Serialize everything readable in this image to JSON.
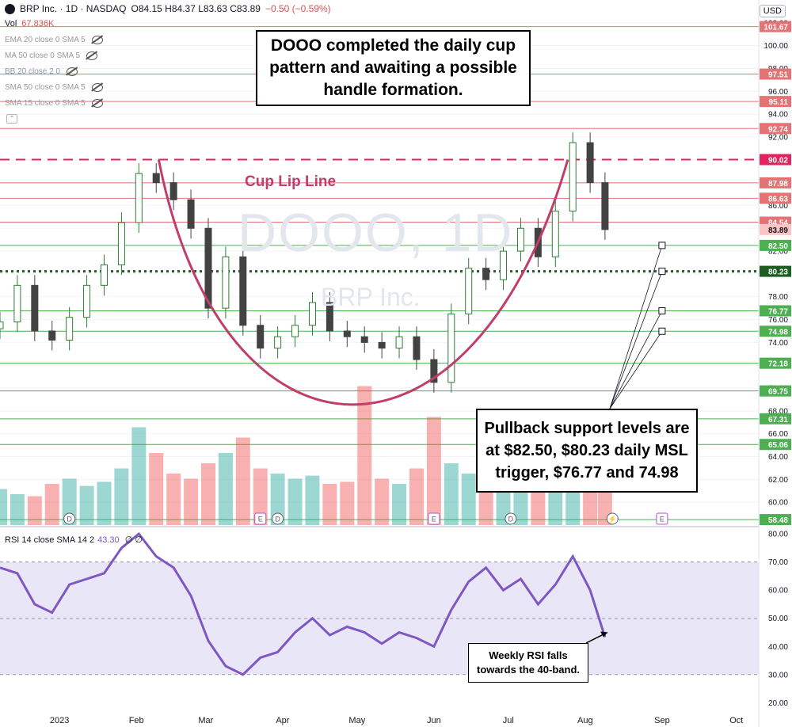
{
  "header": {
    "symbol": "BRP Inc. · 1D · NASDAQ",
    "ohlc": "O84.15 H84.37 L83.63 C83.89",
    "change": "−0.50 (−0.59%)",
    "volume_label": "Vol",
    "volume_value": "67.836K",
    "currency": "USD"
  },
  "indicators": [
    "EMA 20 close 0 SMA 5",
    "MA 50 close 0 SMA 5",
    "BB 20 close 2 0",
    "SMA 50 close 0 SMA 5",
    "SMA 15 close 0 SMA 5"
  ],
  "rsi_header": {
    "label": "RSI 14 close SMA 14 2",
    "value": "43.30",
    "extra": "∅ ∅"
  },
  "watermark": {
    "ticker": "DOOO, 1D",
    "name": "BRP Inc."
  },
  "annotations": {
    "top": [
      "DOOO completed the daily cup",
      "pattern and awaiting a possible",
      "handle formation."
    ],
    "cup_lip": "Cup Lip Line",
    "support": [
      "Pullback support levels are",
      "at $82.50, $80.23 daily MSL",
      "trigger, $76.77 and 74.98"
    ],
    "rsi": [
      "Weekly RSI falls",
      "towards the 40-band."
    ]
  },
  "colors": {
    "up": "#26a69a",
    "down": "#ef5350",
    "cup": "#c13d6b",
    "resistance": "#e57373",
    "support": "#4caf50",
    "msl": "#1b5e20",
    "lip": "#e0245e",
    "rsi": "#7e57c2",
    "rsi_band": "#e9e6f7"
  },
  "chart_data": [
    {
      "type": "line",
      "title": "",
      "price_axis": {
        "ticks": [
          "102.00",
          "100.00",
          "98.00",
          "96.00",
          "94.00",
          "92.00",
          "90.00",
          "88.00",
          "86.00",
          "84.00",
          "82.00",
          "80.00",
          "78.00",
          "76.00",
          "74.00",
          "72.00",
          "70.00",
          "68.00",
          "66.00",
          "64.00",
          "62.00",
          "60.00"
        ],
        "range": [
          58.0,
          104.0
        ]
      },
      "x_axis": {
        "labels": [
          "2023",
          "Feb",
          "Mar",
          "Apr",
          "May",
          "Jun",
          "Jul",
          "Aug",
          "Sep",
          "Oct"
        ],
        "range": [
          "2022-12-08",
          "2023-10-10"
        ]
      },
      "resistance_levels": [
        101.67,
        97.51,
        95.11,
        92.74,
        87.98,
        86.63,
        84.54
      ],
      "support_levels": [
        82.5,
        76.77,
        74.98,
        72.18,
        69.75,
        67.31,
        65.06,
        58.48
      ],
      "msl_level": 80.23,
      "cup_lip_level": 90.02,
      "current_price": 83.89,
      "price_labels": [
        "101.67",
        "97.51",
        "95.11",
        "92.74",
        "90.02",
        "87.98",
        "86.63",
        "84.54",
        "83.89",
        "82.50",
        "80.23",
        "76.77",
        "74.98",
        "72.18",
        "69.75",
        "67.31",
        "65.06",
        "58.48"
      ],
      "close_series": {
        "x": [
          "2022-12-08",
          "2022-12-15",
          "2022-12-22",
          "2022-12-29",
          "2023-01-05",
          "2023-01-12",
          "2023-01-19",
          "2023-01-26",
          "2023-02-02",
          "2023-02-09",
          "2023-02-16",
          "2023-02-23",
          "2023-03-02",
          "2023-03-09",
          "2023-03-16",
          "2023-03-23",
          "2023-03-30",
          "2023-04-06",
          "2023-04-13",
          "2023-04-20",
          "2023-04-27",
          "2023-05-04",
          "2023-05-11",
          "2023-05-18",
          "2023-05-25",
          "2023-06-01",
          "2023-06-08",
          "2023-06-15",
          "2023-06-22",
          "2023-06-29",
          "2023-07-06",
          "2023-07-13",
          "2023-07-20",
          "2023-07-27",
          "2023-08-03",
          "2023-08-09"
        ],
        "y": [
          75.8,
          79.0,
          75.0,
          74.2,
          76.2,
          79.0,
          80.8,
          84.5,
          88.8,
          88.0,
          86.5,
          84.0,
          77.0,
          81.5,
          75.5,
          73.5,
          74.5,
          75.5,
          77.5,
          75.0,
          74.5,
          74.0,
          73.5,
          74.5,
          72.5,
          70.5,
          76.5,
          80.5,
          79.5,
          82.0,
          84.0,
          81.5,
          85.5,
          91.5,
          88.0,
          83.89
        ]
      },
      "ohlc_sample": {
        "open": 84.15,
        "high": 84.37,
        "low": 83.63,
        "close": 83.89
      }
    },
    {
      "type": "bar",
      "title": "",
      "series_label": "Vol",
      "current": "67.836K",
      "relative_volume": [
        0.35,
        0.3,
        0.28,
        0.4,
        0.45,
        0.38,
        0.42,
        0.55,
        0.95,
        0.7,
        0.5,
        0.45,
        0.6,
        0.7,
        0.85,
        0.55,
        0.5,
        0.45,
        0.48,
        0.4,
        0.42,
        1.35,
        0.45,
        0.4,
        0.55,
        1.05,
        0.6,
        0.5,
        0.45,
        0.55,
        0.48,
        0.4,
        0.62,
        0.58,
        0.5,
        0.4
      ]
    },
    {
      "type": "line",
      "title": "",
      "series_label": "RSI 14 close SMA 14 2",
      "current": 43.3,
      "y_ticks": [
        "80.00",
        "70.00",
        "60.00",
        "50.00",
        "40.00",
        "30.00",
        "20.00"
      ],
      "bands": [
        70,
        50,
        30
      ],
      "x": [
        "2022-12-08",
        "2022-12-15",
        "2022-12-22",
        "2022-12-29",
        "2023-01-05",
        "2023-01-12",
        "2023-01-19",
        "2023-01-26",
        "2023-02-02",
        "2023-02-09",
        "2023-02-16",
        "2023-02-23",
        "2023-03-02",
        "2023-03-09",
        "2023-03-16",
        "2023-03-23",
        "2023-03-30",
        "2023-04-06",
        "2023-04-13",
        "2023-04-20",
        "2023-04-27",
        "2023-05-04",
        "2023-05-11",
        "2023-05-18",
        "2023-05-25",
        "2023-06-01",
        "2023-06-08",
        "2023-06-15",
        "2023-06-22",
        "2023-06-29",
        "2023-07-06",
        "2023-07-13",
        "2023-07-20",
        "2023-07-27",
        "2023-08-03",
        "2023-08-09"
      ],
      "y": [
        68,
        66,
        55,
        52,
        62,
        64,
        66,
        75,
        80,
        72,
        68,
        58,
        42,
        33,
        30,
        36,
        38,
        45,
        50,
        44,
        47,
        45,
        41,
        45,
        43,
        40,
        53,
        63,
        68,
        60,
        64,
        55,
        62,
        72,
        60,
        43.3
      ]
    }
  ]
}
